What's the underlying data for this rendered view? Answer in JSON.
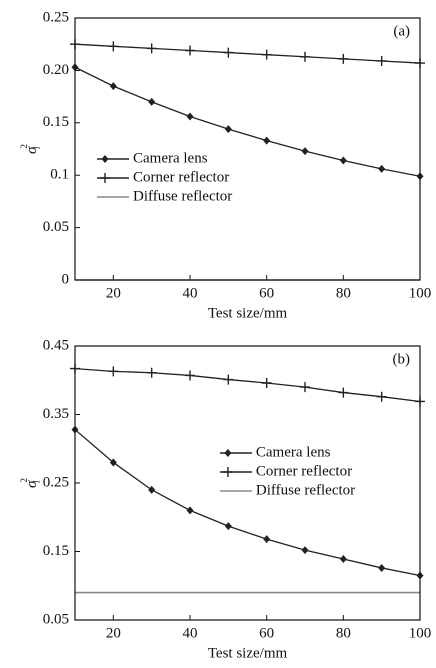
{
  "chart_data": [
    {
      "type": "line",
      "annotation": "(a)",
      "xlabel": "Test size/mm",
      "ylabel": {
        "symbol": "σ",
        "subscript": "l",
        "superscript": "2"
      },
      "x": [
        10,
        20,
        30,
        40,
        50,
        60,
        70,
        80,
        90,
        100
      ],
      "xlim": [
        10,
        100
      ],
      "xticks": [
        20,
        40,
        60,
        80,
        100
      ],
      "ylim": [
        0,
        0.25
      ],
      "yticks": [
        0,
        0.05,
        0.1,
        0.15,
        {
          "value": 0.2,
          "label": "0.20"
        },
        0.25
      ],
      "legend": "center left",
      "series": [
        {
          "name": "Camera lens",
          "color": "#222222",
          "marker": "diamond",
          "values": [
            0.203,
            0.185,
            0.17,
            0.156,
            0.144,
            0.133,
            0.123,
            0.114,
            0.106,
            0.099
          ]
        },
        {
          "name": "Corner reflector",
          "color": "#222222",
          "marker": "plus",
          "values": [
            0.225,
            0.223,
            0.221,
            0.219,
            0.217,
            0.215,
            0.213,
            0.211,
            0.209,
            0.207
          ]
        },
        {
          "name": "Diffuse reflector",
          "color": "#888888",
          "marker": "none",
          "values": [
            0,
            0,
            0,
            0,
            0,
            0,
            0,
            0,
            0,
            0
          ]
        }
      ]
    },
    {
      "type": "line",
      "annotation": "(b)",
      "xlabel": "Test size/mm",
      "ylabel": {
        "symbol": "σ",
        "subscript": "l",
        "superscript": "2"
      },
      "x": [
        10,
        20,
        30,
        40,
        50,
        60,
        70,
        80,
        90,
        100
      ],
      "xlim": [
        10,
        100
      ],
      "xticks": [
        20,
        40,
        60,
        80,
        100
      ],
      "ylim": [
        0.05,
        0.45
      ],
      "yticks": [
        0.05,
        0.15,
        0.25,
        0.35,
        0.45
      ],
      "legend": "center right",
      "series": [
        {
          "name": "Camera lens",
          "color": "#222222",
          "marker": "diamond",
          "values": [
            0.328,
            0.28,
            0.24,
            0.21,
            0.187,
            0.168,
            0.152,
            0.139,
            0.126,
            0.115
          ]
        },
        {
          "name": "Corner reflector",
          "color": "#222222",
          "marker": "plus",
          "values": [
            0.417,
            0.413,
            0.411,
            0.407,
            0.401,
            0.396,
            0.39,
            0.382,
            0.376,
            0.369
          ]
        },
        {
          "name": "Diffuse reflector",
          "color": "#888888",
          "marker": "none",
          "values": [
            0.09,
            0.09,
            0.09,
            0.09,
            0.09,
            0.09,
            0.09,
            0.09,
            0.09,
            0.09
          ]
        }
      ]
    }
  ]
}
